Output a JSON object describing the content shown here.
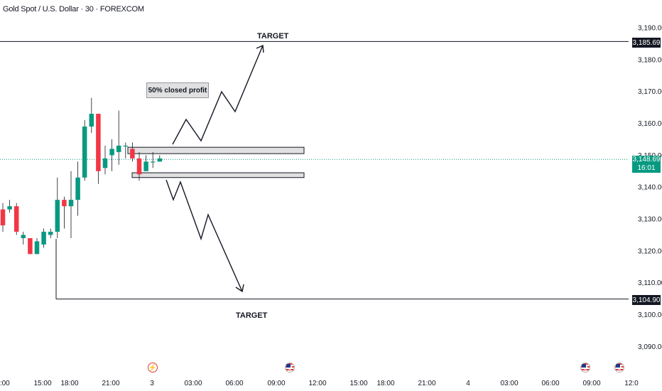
{
  "header": {
    "symbol_title": "Gold Spot / U.S. Dollar · 30 · FOREXCOM"
  },
  "annotations": {
    "note": "50% closed profit",
    "target_up": "TARGET",
    "target_down": "TARGET"
  },
  "price_tags": {
    "upper_target": "3,185.69",
    "lower_target": "3,104.90",
    "last_price": "3,148.69",
    "countdown": "16:01"
  },
  "colors": {
    "bull": "#089981",
    "bear": "#f23645",
    "line": "#131722",
    "zone_fill": "#e0e0e0",
    "last_price_line": "#089981"
  },
  "icons": {
    "events": [
      "lightning-icon",
      "us-flag-icon",
      "us-flag-icon",
      "us-flag-icon"
    ]
  },
  "chart_data": {
    "type": "candlestick",
    "title": "Gold Spot / U.S. Dollar · 30 · FOREXCOM",
    "xlabel": "",
    "ylabel": "",
    "ylim": [
      3085,
      3195
    ],
    "y_ticks": [
      "3,090.00",
      "3,100.00",
      "3,110.00",
      "3,120.00",
      "3,130.00",
      "3,140.00",
      "3,150.00",
      "3,160.00",
      "3,170.00",
      "3,180.00",
      "3,190.00"
    ],
    "y_tick_values": [
      3090,
      3100,
      3110,
      3120,
      3130,
      3140,
      3150,
      3160,
      3170,
      3180,
      3190
    ],
    "x_ticks": [
      "2:00",
      "15:00",
      "18:00",
      "21:00",
      "3",
      "03:00",
      "06:00",
      "09:00",
      "12:00",
      "15:00",
      "18:00",
      "21:00",
      "4",
      "03:00",
      "06:00",
      "09:00",
      "12:0"
    ],
    "candles": [
      {
        "o": 3133,
        "h": 3135,
        "l": 3126,
        "c": 3128
      },
      {
        "o": 3133,
        "h": 3136,
        "l": 3132,
        "c": 3134
      },
      {
        "o": 3134,
        "h": 3135,
        "l": 3125,
        "c": 3126
      },
      {
        "o": 3124,
        "h": 3126,
        "l": 3122,
        "c": 3125
      },
      {
        "o": 3124,
        "h": 3124,
        "l": 3119,
        "c": 3119
      },
      {
        "o": 3119,
        "h": 3124,
        "l": 3119,
        "c": 3123
      },
      {
        "o": 3122,
        "h": 3127,
        "l": 3121,
        "c": 3126
      },
      {
        "o": 3125,
        "h": 3127,
        "l": 3124,
        "c": 3126
      },
      {
        "o": 3126,
        "h": 3143,
        "l": 3124,
        "c": 3136
      },
      {
        "o": 3136,
        "h": 3137,
        "l": 3127,
        "c": 3134
      },
      {
        "o": 3134,
        "h": 3145,
        "l": 3124,
        "c": 3136
      },
      {
        "o": 3136,
        "h": 3148,
        "l": 3131,
        "c": 3143
      },
      {
        "o": 3143,
        "h": 3161,
        "l": 3142,
        "c": 3159
      },
      {
        "o": 3159,
        "h": 3168,
        "l": 3157,
        "c": 3163
      },
      {
        "o": 3163,
        "h": 3163,
        "l": 3141,
        "c": 3145
      },
      {
        "o": 3146,
        "h": 3153,
        "l": 3144,
        "c": 3149
      },
      {
        "o": 3150,
        "h": 3155,
        "l": 3145,
        "c": 3152
      },
      {
        "o": 3151,
        "h": 3164,
        "l": 3147,
        "c": 3153
      },
      {
        "o": 3153,
        "h": 3154,
        "l": 3149,
        "c": 3153
      },
      {
        "o": 3152,
        "h": 3154,
        "l": 3148,
        "c": 3149
      },
      {
        "o": 3149,
        "h": 3151,
        "l": 3142,
        "c": 3144
      },
      {
        "o": 3145,
        "h": 3150,
        "l": 3145,
        "c": 3148
      },
      {
        "o": 3148,
        "h": 3151,
        "l": 3146,
        "c": 3148
      },
      {
        "o": 3148,
        "h": 3150,
        "l": 3148,
        "c": 3149
      }
    ],
    "horizontal_levels": [
      3185.69,
      3104.9
    ],
    "zones": [
      {
        "top": 3152.5,
        "bottom": 3150.5
      },
      {
        "top": 3144.5,
        "bottom": 3143.0
      }
    ],
    "last_price": 3148.69
  }
}
